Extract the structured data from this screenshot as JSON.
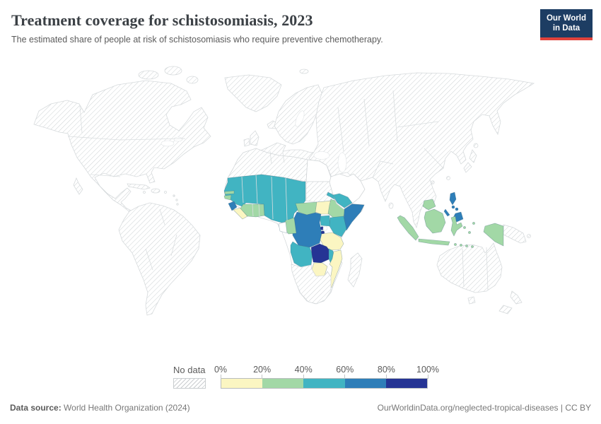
{
  "header": {
    "title": "Treatment coverage for schistosomiasis, 2023",
    "subtitle": "The estimated share of people at risk of schistosomiasis who require preventive chemotherapy."
  },
  "logo": {
    "line1": "Our World",
    "line2": "in Data",
    "bg_color": "#1d3d63",
    "accent_color": "#e0423b"
  },
  "legend": {
    "no_data_label": "No data",
    "tick_labels": [
      "0%",
      "20%",
      "40%",
      "60%",
      "80%",
      "100%"
    ],
    "bin_colors": [
      "#fbf6c2",
      "#a2d8a6",
      "#41b4c2",
      "#2e7eb8",
      "#253494"
    ],
    "no_data_pattern": "gray-diagonal-hatch"
  },
  "footer": {
    "datasource_label": "Data source:",
    "datasource_value": " World Health Organization (2024)",
    "credit": "OurWorldinData.org/neglected-tropical-diseases | CC BY"
  },
  "chart_data": {
    "type": "choropleth-world-map",
    "title": "Treatment coverage for schistosomiasis, 2023",
    "subtitle": "The estimated share of people at risk of schistosomiasis who require preventive chemotherapy.",
    "unit": "%",
    "value_range": [
      0,
      100
    ],
    "legend_position": "bottom-center",
    "bins": [
      {
        "range": "0-20%",
        "color": "#fbf6c2",
        "countries": [
          "Liberia",
          "South Sudan",
          "Tanzania",
          "Mozambique",
          "Zimbabwe"
        ]
      },
      {
        "range": "20-40%",
        "color": "#a2d8a6",
        "countries": [
          "Gambia",
          "Guinea-Bissau",
          "Cote d'Ivoire",
          "Ghana",
          "Togo",
          "Central African Republic",
          "Congo",
          "Ethiopia",
          "Cambodia",
          "Indonesia"
        ]
      },
      {
        "range": "40-60%",
        "color": "#41b4c2",
        "countries": [
          "Mauritania",
          "Senegal",
          "Guinea",
          "Mali",
          "Burkina Faso",
          "Niger",
          "Chad",
          "Benin",
          "Nigeria",
          "Cameroon",
          "Eritrea",
          "Yemen",
          "Uganda",
          "Kenya",
          "Angola",
          "Malawi"
        ]
      },
      {
        "range": "60-80%",
        "color": "#2e7eb8",
        "countries": [
          "Sierra Leone",
          "Democratic Republic of Congo",
          "Somalia",
          "Philippines"
        ]
      },
      {
        "range": "80-100%",
        "color": "#253494",
        "countries": [
          "Zambia",
          "Rwanda",
          "Burundi"
        ]
      }
    ],
    "white_fill_countries": [
      "Egypt",
      "Saudi Arabia",
      "Gabon"
    ],
    "no_data_regions": [
      "North America",
      "South America",
      "Europe",
      "Russia and Central Asia",
      "Middle East (most)",
      "South Asia",
      "China and East Asia",
      "Sudan",
      "Madagascar",
      "Namibia",
      "Botswana",
      "South Africa",
      "Papua New Guinea",
      "Australia",
      "New Zealand"
    ]
  }
}
